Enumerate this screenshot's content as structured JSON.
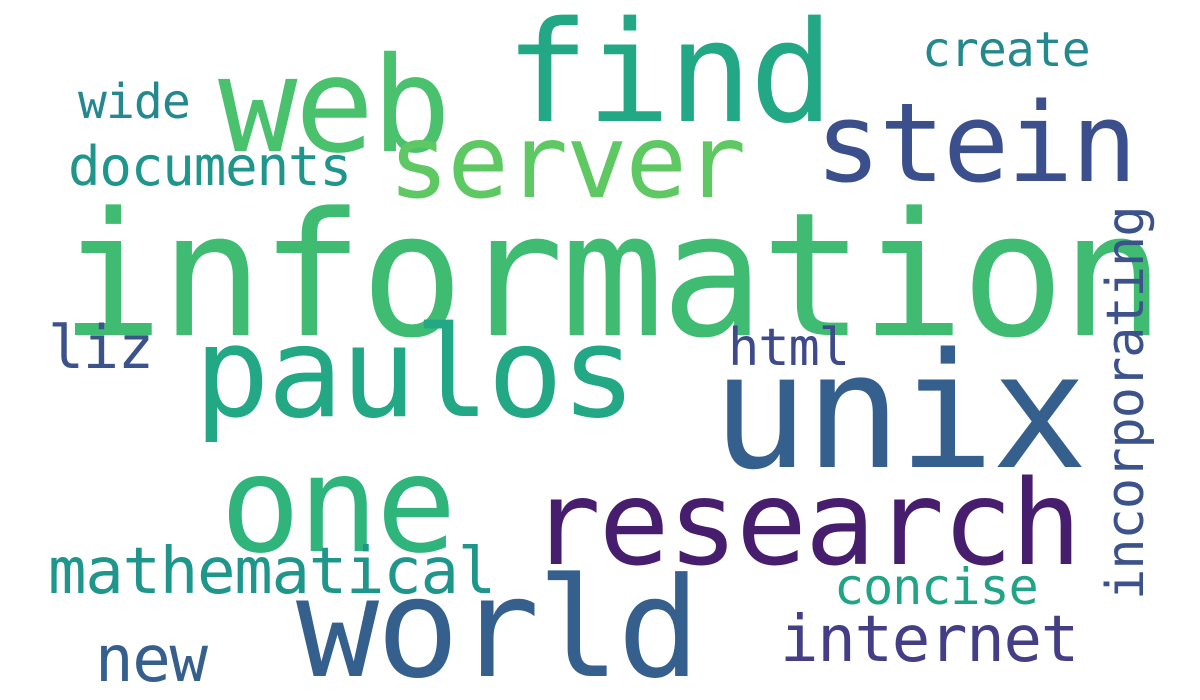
{
  "word_cloud": {
    "words": [
      {
        "key": "information",
        "text": "information",
        "color": "#3fbc72"
      },
      {
        "key": "find",
        "text": "find",
        "color": "#22a884"
      },
      {
        "key": "web",
        "text": "web",
        "color": "#4ac16d"
      },
      {
        "key": "server",
        "text": "server",
        "color": "#5ec962"
      },
      {
        "key": "stein",
        "text": "stein",
        "color": "#3b4f8c"
      },
      {
        "key": "create",
        "text": "create",
        "color": "#23898e"
      },
      {
        "key": "wide",
        "text": "wide",
        "color": "#23898e"
      },
      {
        "key": "documents",
        "text": "documents",
        "color": "#1f968b"
      },
      {
        "key": "paulos",
        "text": "paulos",
        "color": "#22a884"
      },
      {
        "key": "unix",
        "text": "unix",
        "color": "#355f8d"
      },
      {
        "key": "html",
        "text": "html",
        "color": "#3e4a89"
      },
      {
        "key": "liz",
        "text": "liz",
        "color": "#3b528b"
      },
      {
        "key": "one",
        "text": "one",
        "color": "#2fb47c"
      },
      {
        "key": "research",
        "text": "research",
        "color": "#471d6d"
      },
      {
        "key": "mathematical",
        "text": "mathematical",
        "color": "#1f968b"
      },
      {
        "key": "world",
        "text": "world",
        "color": "#35608d"
      },
      {
        "key": "concise",
        "text": "concise",
        "color": "#20a486"
      },
      {
        "key": "internet",
        "text": "internet",
        "color": "#433e85"
      },
      {
        "key": "new",
        "text": "new",
        "color": "#355f8d"
      },
      {
        "key": "incorporating",
        "text": "incorporating",
        "color": "#3b528b"
      }
    ]
  }
}
